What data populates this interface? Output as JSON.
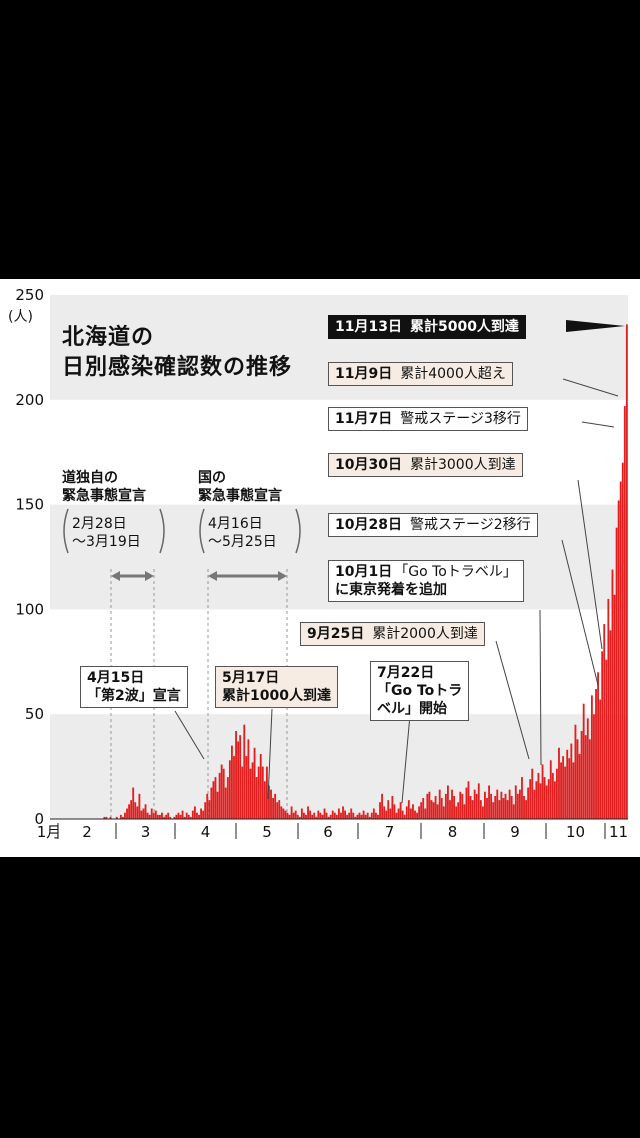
{
  "chart_data": {
    "type": "bar",
    "title": [
      "北海道の",
      "日別感染確認数の推移"
    ],
    "ylabel": "(人)",
    "ylim": [
      0,
      250
    ],
    "yticks": [
      0,
      50,
      100,
      150,
      200,
      250
    ],
    "months": [
      "1月",
      "2",
      "3",
      "4",
      "5",
      "6",
      "7",
      "8",
      "9",
      "10",
      "11"
    ],
    "color": "#e02020",
    "grid_bands": true,
    "series": [
      {
        "values": [
          0,
          0,
          0,
          0,
          0,
          0,
          0,
          0,
          0,
          0,
          0,
          0,
          0,
          0,
          0,
          0,
          0,
          0,
          0,
          0,
          0,
          0,
          0,
          0,
          0,
          0,
          1,
          1,
          0,
          1,
          0,
          0,
          1,
          0,
          2,
          1,
          3,
          5,
          7,
          9,
          15,
          8,
          6,
          12,
          4,
          5,
          7,
          3,
          2,
          5,
          3,
          4,
          2,
          2,
          3,
          1,
          2,
          3,
          1,
          0,
          1,
          2,
          3,
          2,
          4,
          1,
          3,
          2,
          1,
          4,
          6,
          3,
          2,
          5,
          4,
          8,
          12,
          9,
          15,
          18,
          20,
          13,
          22,
          26,
          24,
          15,
          20,
          28,
          35,
          30,
          42,
          37,
          40,
          25,
          45,
          30,
          38,
          24,
          27,
          34,
          20,
          25,
          31,
          25,
          18,
          25,
          16,
          14,
          10,
          12,
          8,
          9,
          6,
          5,
          4,
          3,
          2,
          6,
          3,
          4,
          2,
          1,
          5,
          3,
          2,
          6,
          4,
          2,
          3,
          1,
          4,
          3,
          2,
          5,
          3,
          1,
          2,
          4,
          3,
          2,
          5,
          3,
          6,
          4,
          2,
          3,
          5,
          3,
          1,
          2,
          3,
          2,
          4,
          2,
          3,
          1,
          3,
          5,
          3,
          2,
          8,
          12,
          6,
          4,
          9,
          5,
          11,
          7,
          3,
          5,
          8,
          4,
          2,
          6,
          9,
          5,
          7,
          4,
          3,
          6,
          8,
          10,
          5,
          12,
          13,
          9,
          8,
          11,
          7,
          14,
          10,
          6,
          12,
          16,
          9,
          14,
          11,
          6,
          8,
          13,
          12,
          7,
          15,
          18,
          11,
          9,
          14,
          12,
          17,
          9,
          6,
          13,
          10,
          16,
          12,
          8,
          11,
          14,
          9,
          13,
          10,
          12,
          9,
          14,
          11,
          7,
          16,
          12,
          14,
          20,
          11,
          9,
          15,
          19,
          24,
          14,
          18,
          22,
          17,
          26,
          20,
          16,
          19,
          28,
          22,
          18,
          24,
          34,
          27,
          30,
          25,
          33,
          29,
          36,
          27,
          45,
          38,
          31,
          42,
          55,
          40,
          48,
          38,
          59,
          50,
          62,
          70,
          57,
          80,
          93,
          76,
          105,
          90,
          119,
          107,
          139,
          152,
          161,
          170,
          197,
          236
        ]
      }
    ]
  },
  "notes": {
    "local": {
      "title": [
        "道独自の",
        "緊急事態宣言"
      ],
      "range": [
        "2月28日",
        "〜3月19日"
      ]
    },
    "national": {
      "title": [
        "国の",
        "緊急事態宣言"
      ],
      "range": [
        "4月16日",
        "〜5月25日"
      ]
    }
  },
  "annotations": [
    {
      "date": "11月13日",
      "text": "累計5000人到達",
      "style": "dark"
    },
    {
      "date": "11月9日",
      "text": "累計4000人超え",
      "style": "beige"
    },
    {
      "date": "11月7日",
      "text": "警戒ステージ3移行",
      "style": "plain"
    },
    {
      "date": "10月30日",
      "text": "累計3000人到達",
      "style": "beige"
    },
    {
      "date": "10月28日",
      "text": "警戒ステージ2移行",
      "style": "plain"
    },
    {
      "date": "10月1日",
      "text": "「Go Toトラベル」",
      "line2": "に東京発着を追加",
      "style": "plain"
    },
    {
      "date": "9月25日",
      "text": "累計2000人到達",
      "style": "beige"
    },
    {
      "date": "7月22日",
      "text": "「Go Toトラ",
      "line2": "ベル」開始",
      "style": "plain"
    },
    {
      "date": "5月17日",
      "text": "累計1000人到達",
      "style": "beige"
    },
    {
      "date": "4月15日",
      "text": "「第2波」宣言",
      "style": "plain"
    }
  ]
}
